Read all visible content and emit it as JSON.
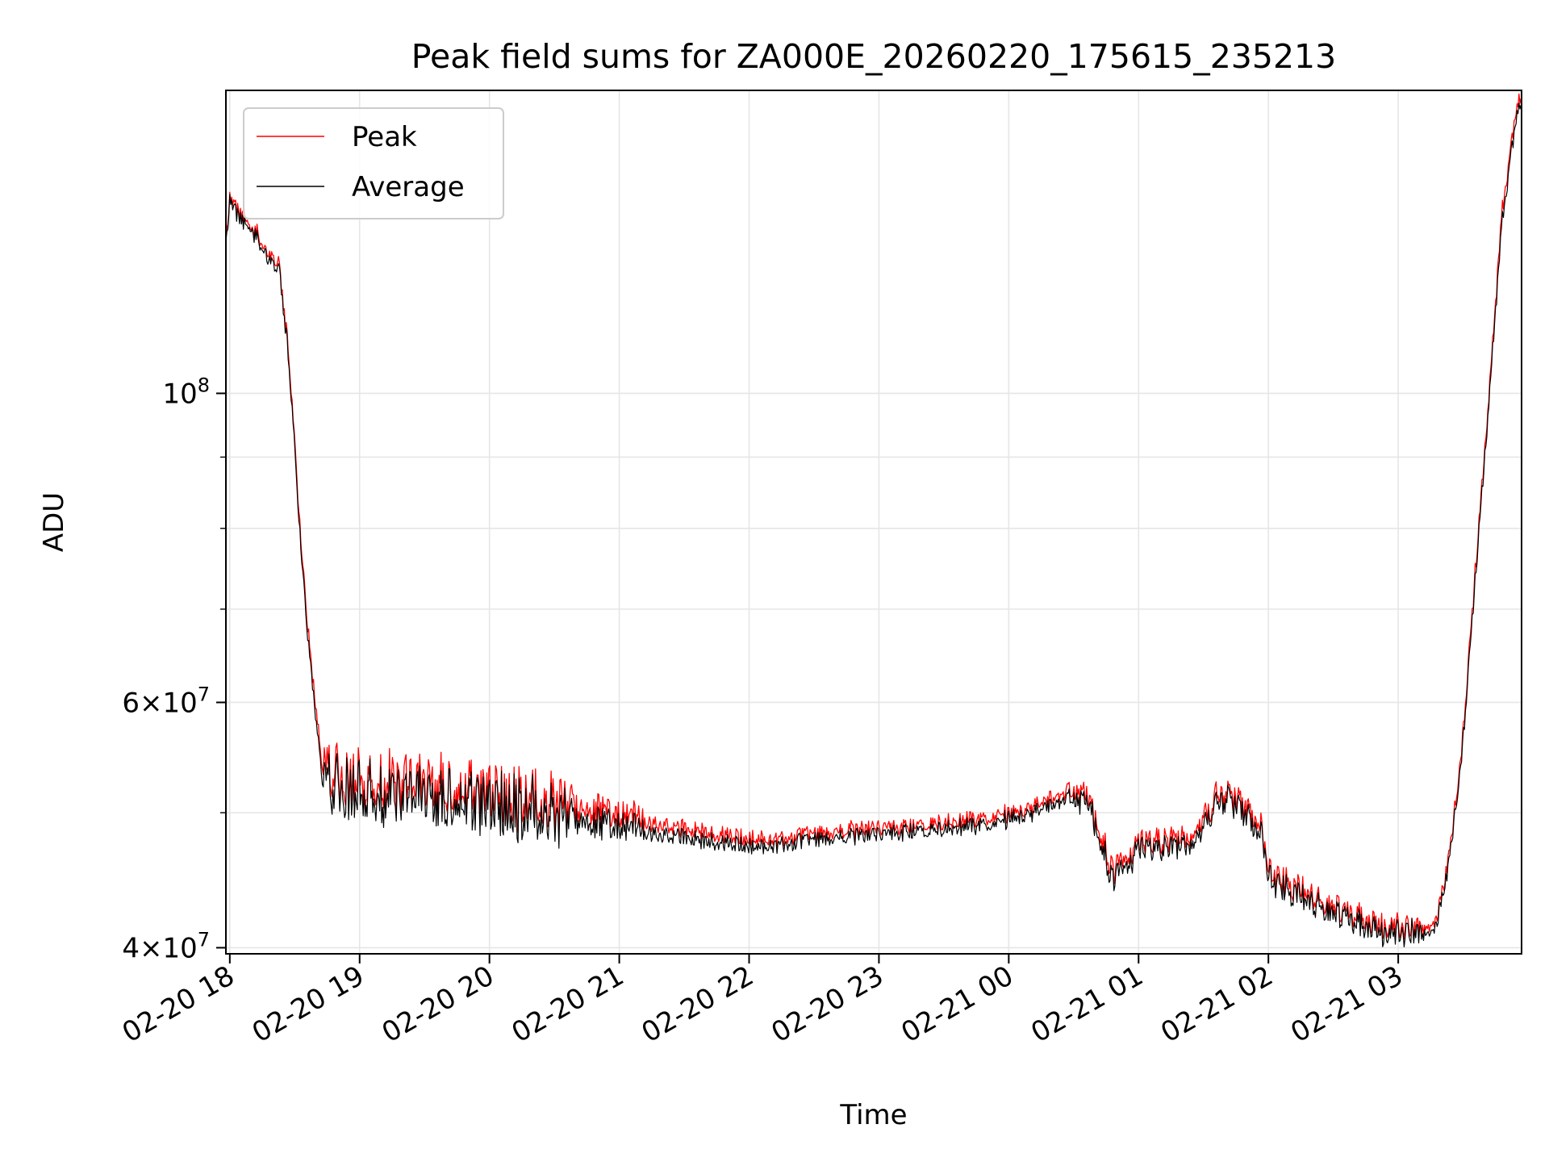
{
  "chart_data": {
    "type": "line",
    "title": "Peak field sums for ZA000E_20260220_175615_235213",
    "xlabel": "Time",
    "ylabel": "ADU",
    "yscale": "log",
    "xlim_hours": [
      -0.03,
      9.95
    ],
    "ylim": [
      39600000,
      165000000
    ],
    "grid": true,
    "legend_position": "upper-left",
    "x_ticks": [
      {
        "value": 0,
        "label": "02-20 18"
      },
      {
        "value": 1,
        "label": "02-20 19"
      },
      {
        "value": 2,
        "label": "02-20 20"
      },
      {
        "value": 3,
        "label": "02-20 21"
      },
      {
        "value": 4,
        "label": "02-20 22"
      },
      {
        "value": 5,
        "label": "02-20 23"
      },
      {
        "value": 6,
        "label": "02-21 00"
      },
      {
        "value": 7,
        "label": "02-21 01"
      },
      {
        "value": 8,
        "label": "02-21 02"
      },
      {
        "value": 9,
        "label": "02-21 03"
      }
    ],
    "y_major_ticks": [
      {
        "value": 40000000,
        "mantissa": "4",
        "exponent": "7"
      },
      {
        "value": 60000000,
        "mantissa": "6",
        "exponent": "7"
      },
      {
        "value": 100000000,
        "mantissa": "",
        "exponent": "8"
      }
    ],
    "y_minor_ticks": [
      50000000,
      70000000,
      80000000,
      90000000,
      200000000
    ],
    "times_symbol": "×",
    "tick_base": "10",
    "series": [
      {
        "name": "Peak",
        "color": "#ff0000",
        "x_hours": [
          -0.03,
          0.0,
          0.1,
          0.2,
          0.3,
          0.38,
          0.45,
          0.5,
          0.55,
          0.6,
          0.65,
          0.7,
          0.75,
          0.8,
          0.9,
          1.0,
          1.2,
          1.5,
          1.8,
          2.0,
          2.3,
          2.6,
          2.8,
          3.0,
          3.3,
          3.6,
          3.9,
          4.2,
          4.5,
          4.8,
          5.0,
          5.3,
          5.6,
          5.9,
          6.2,
          6.5,
          6.6,
          6.7,
          6.8,
          6.9,
          7.0,
          7.2,
          7.4,
          7.5,
          7.6,
          7.7,
          7.8,
          7.95,
          8.0,
          8.2,
          8.4,
          8.6,
          8.8,
          9.0,
          9.1,
          9.2,
          9.3,
          9.4,
          9.5,
          9.6,
          9.7,
          9.8,
          9.9,
          9.95
        ],
        "values": [
          130000000,
          138000000,
          134000000,
          131000000,
          126000000,
          124000000,
          108000000,
          92000000,
          78000000,
          68000000,
          61000000,
          56000000,
          54200000,
          53700000,
          53000000,
          52800000,
          52600000,
          52300000,
          52000000,
          51700000,
          51300000,
          50800000,
          50300000,
          49800000,
          49000000,
          48500000,
          48000000,
          47900000,
          48200000,
          48600000,
          48800000,
          49000000,
          49300000,
          49700000,
          50500000,
          52000000,
          51500000,
          48500000,
          45500000,
          46200000,
          47500000,
          47800000,
          48000000,
          49500000,
          51500000,
          51700000,
          50500000,
          49000000,
          45300000,
          44200000,
          43400000,
          42500000,
          41500000,
          41300000,
          41300000,
          41400000,
          42000000,
          47000000,
          57000000,
          76000000,
          100000000,
          135000000,
          158000000,
          164000000
        ]
      },
      {
        "name": "Average",
        "color": "#000000",
        "x_hours": [
          -0.03,
          0.0,
          0.1,
          0.2,
          0.3,
          0.38,
          0.45,
          0.5,
          0.55,
          0.6,
          0.65,
          0.7,
          0.75,
          0.8,
          0.9,
          1.0,
          1.2,
          1.5,
          1.8,
          2.0,
          2.3,
          2.6,
          2.8,
          3.0,
          3.3,
          3.6,
          3.9,
          4.2,
          4.5,
          4.8,
          5.0,
          5.3,
          5.6,
          5.9,
          6.2,
          6.5,
          6.6,
          6.7,
          6.8,
          6.9,
          7.0,
          7.2,
          7.4,
          7.5,
          7.6,
          7.7,
          7.8,
          7.95,
          8.0,
          8.2,
          8.4,
          8.6,
          8.8,
          9.0,
          9.1,
          9.2,
          9.3,
          9.4,
          9.5,
          9.6,
          9.7,
          9.8,
          9.9,
          9.95
        ],
        "values": [
          129000000,
          137000000,
          133000000,
          130000000,
          125000000,
          123000000,
          107000000,
          91000000,
          77000000,
          67000000,
          60000000,
          55000000,
          53200000,
          52700000,
          52000000,
          51800000,
          51600000,
          51300000,
          51000000,
          50700000,
          50300000,
          49800000,
          49300000,
          48900000,
          48200000,
          47800000,
          47400000,
          47400000,
          47700000,
          48100000,
          48300000,
          48500000,
          48800000,
          49200000,
          50000000,
          51400000,
          50900000,
          47900000,
          44900000,
          45600000,
          46900000,
          47200000,
          47400000,
          48900000,
          50900000,
          51100000,
          49900000,
          48400000,
          44800000,
          43700000,
          42900000,
          42000000,
          41100000,
          40900000,
          40900000,
          41000000,
          41600000,
          46500000,
          56300000,
          75000000,
          99000000,
          133000000,
          156000000,
          162000000
        ]
      }
    ]
  }
}
